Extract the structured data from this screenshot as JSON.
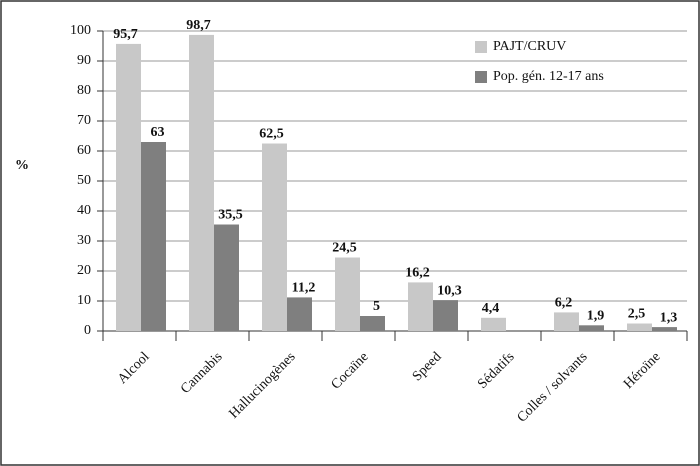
{
  "chart_data": {
    "type": "bar",
    "ylabel": "%",
    "categories": [
      "Alcool",
      "Cannabis",
      "Hallucinogènes",
      "Cocaïne",
      "Speed",
      "Sédatifs",
      "Colles / solvants",
      "Héroïne"
    ],
    "series": [
      {
        "name": "PAJT/CRUV",
        "color": "#c8c8c8",
        "values": [
          95.7,
          98.7,
          62.5,
          24.5,
          16.2,
          4.4,
          6.2,
          2.5
        ],
        "value_labels": [
          "95,7",
          "98,7",
          "62,5",
          "24,5",
          "16,2",
          "4,4",
          "6,2",
          "2,5"
        ]
      },
      {
        "name": "Pop. gén. 12-17 ans",
        "color": "#7f7f7f",
        "values": [
          63,
          35.5,
          11.2,
          5,
          10.3,
          null,
          1.9,
          1.3
        ],
        "value_labels": [
          "63",
          "35,5",
          "11,2",
          "5",
          "10,3",
          null,
          "1,9",
          "1,3"
        ]
      }
    ],
    "ylim": [
      0,
      100
    ],
    "yticks": [
      0,
      10,
      20,
      30,
      40,
      50,
      60,
      70,
      80,
      90,
      100
    ],
    "grid": true,
    "legend": "upper right"
  }
}
